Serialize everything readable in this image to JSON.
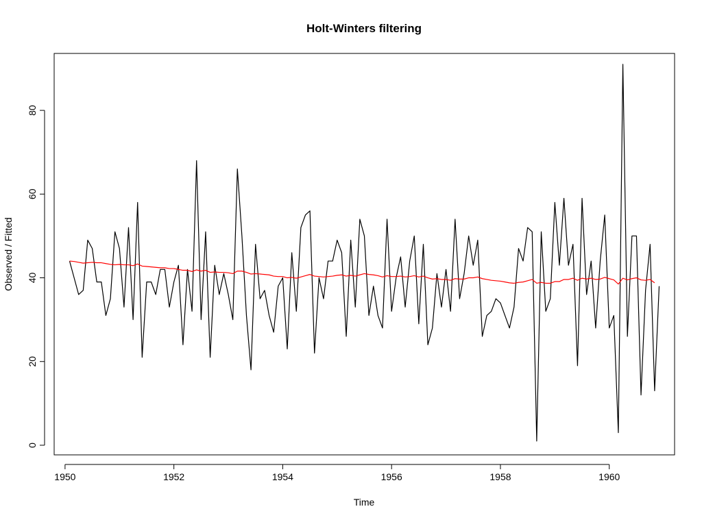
{
  "chart_data": {
    "type": "line",
    "title": "Holt-Winters filtering",
    "xlabel": "Time",
    "ylabel": "Observed / Fitted",
    "xlim": [
      1950,
      1961
    ],
    "ylim": [
      0,
      91
    ],
    "x_ticks": [
      1950,
      1952,
      1954,
      1956,
      1958,
      1960
    ],
    "y_ticks": [
      0,
      20,
      40,
      60,
      80
    ],
    "grid": false,
    "legend": "none",
    "x_start": 1950.0833,
    "x_step": 0.0833333,
    "series": [
      {
        "color": "#000000",
        "values": [
          44,
          40,
          36,
          37,
          49,
          47,
          39,
          39,
          31,
          35,
          51,
          47,
          33,
          52,
          30,
          58,
          21,
          39,
          39,
          36,
          42,
          42,
          33,
          39,
          43,
          24,
          42,
          32,
          68,
          30,
          51,
          21,
          43,
          36,
          41,
          36,
          30,
          66,
          50,
          31,
          18,
          48,
          35,
          37,
          31,
          27,
          38,
          40,
          23,
          46,
          32,
          52,
          55,
          56,
          22,
          40,
          35,
          44,
          44,
          49,
          46,
          26,
          49,
          33,
          54,
          50,
          31,
          38,
          31,
          28,
          54,
          32,
          40,
          45,
          33,
          44,
          50,
          29,
          48,
          24,
          28,
          41,
          33,
          42,
          32,
          54,
          35,
          41,
          50,
          43,
          49,
          26,
          31,
          32,
          35,
          34,
          31,
          28,
          33,
          47,
          44,
          52,
          51,
          1,
          51,
          32,
          35,
          58,
          43,
          59,
          43,
          48,
          19,
          59,
          36,
          44,
          28,
          44,
          55,
          28,
          31,
          3,
          91,
          26,
          50,
          50,
          12,
          37,
          48,
          13,
          38
        ]
      },
      {
        "color": "#ff0000",
        "values": [
          44.0,
          43.9,
          43.7,
          43.5,
          43.6,
          43.7,
          43.6,
          43.6,
          43.4,
          43.2,
          43.1,
          43.2,
          43.1,
          43.1,
          42.9,
          43.3,
          42.8,
          42.7,
          42.6,
          42.5,
          42.4,
          42.4,
          42.2,
          42.2,
          42.0,
          41.8,
          41.8,
          41.5,
          41.9,
          41.6,
          41.8,
          41.3,
          41.4,
          41.3,
          41.3,
          41.2,
          41.0,
          41.6,
          41.6,
          41.3,
          40.9,
          41.0,
          40.9,
          40.8,
          40.7,
          40.4,
          40.3,
          40.3,
          40.0,
          40.1,
          39.9,
          40.2,
          40.5,
          40.8,
          40.4,
          40.3,
          40.2,
          40.3,
          40.4,
          40.6,
          40.7,
          40.4,
          40.6,
          40.4,
          40.7,
          41.0,
          40.8,
          40.7,
          40.5,
          40.2,
          40.5,
          40.3,
          40.3,
          40.4,
          40.2,
          40.3,
          40.5,
          40.2,
          40.4,
          40.0,
          39.7,
          39.8,
          39.6,
          39.6,
          39.4,
          39.8,
          39.7,
          39.7,
          40.0,
          40.0,
          40.2,
          39.8,
          39.6,
          39.4,
          39.3,
          39.2,
          39.0,
          38.8,
          38.7,
          38.9,
          39.0,
          39.3,
          39.6,
          38.7,
          38.9,
          38.7,
          38.7,
          39.1,
          39.1,
          39.6,
          39.6,
          39.9,
          39.4,
          39.9,
          39.7,
          39.9,
          39.6,
          39.7,
          40.1,
          39.8,
          39.5,
          38.5,
          39.9,
          39.5,
          39.8,
          40.0,
          39.5,
          39.4,
          39.6,
          38.8
        ]
      }
    ]
  },
  "colors": {
    "observed": "#000000",
    "fitted": "#ff0000",
    "background": "#ffffff",
    "frame": "#000000"
  }
}
